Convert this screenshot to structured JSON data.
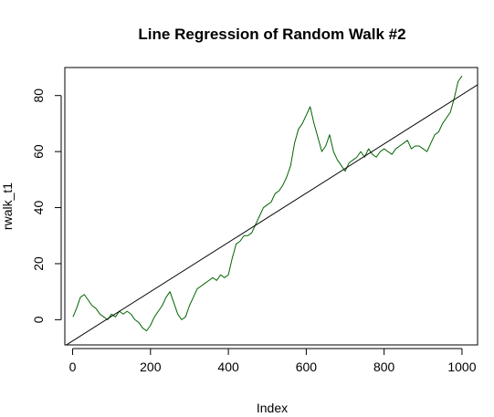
{
  "chart_data": {
    "type": "line",
    "title": "Line Regression of Random Walk #2",
    "xlabel": "Index",
    "ylabel": "rwalk_t1",
    "xlim": [
      -20,
      1040
    ],
    "ylim": [
      -9,
      90
    ],
    "x_ticks": [
      0,
      200,
      400,
      600,
      800,
      1000
    ],
    "y_ticks": [
      0,
      20,
      40,
      60,
      80
    ],
    "grid": false,
    "legend": "none",
    "series": [
      {
        "color": "#006400",
        "x": [
          1,
          10,
          20,
          30,
          40,
          50,
          60,
          70,
          80,
          90,
          100,
          110,
          120,
          130,
          140,
          150,
          160,
          170,
          180,
          190,
          200,
          210,
          220,
          230,
          240,
          250,
          260,
          270,
          280,
          290,
          300,
          310,
          320,
          330,
          340,
          350,
          360,
          370,
          380,
          390,
          400,
          410,
          420,
          430,
          440,
          450,
          460,
          470,
          480,
          490,
          500,
          510,
          520,
          530,
          540,
          550,
          560,
          570,
          580,
          590,
          600,
          610,
          620,
          630,
          640,
          650,
          660,
          670,
          680,
          690,
          700,
          710,
          720,
          730,
          740,
          750,
          760,
          770,
          780,
          790,
          800,
          810,
          820,
          830,
          840,
          850,
          860,
          870,
          880,
          890,
          900,
          910,
          920,
          930,
          940,
          950,
          960,
          970,
          980,
          990,
          1000
        ],
        "y": [
          1,
          4,
          8,
          9,
          7,
          5,
          4,
          2,
          1,
          0,
          2,
          1,
          3,
          2,
          3,
          2,
          0,
          -1,
          -3,
          -4,
          -2,
          1,
          3,
          5,
          8,
          10,
          6,
          2,
          0,
          1,
          5,
          8,
          11,
          12,
          13,
          14,
          15,
          14,
          16,
          15,
          16,
          22,
          27,
          28,
          30,
          30,
          31,
          34,
          37,
          40,
          41,
          42,
          45,
          46,
          48,
          51,
          55,
          63,
          68,
          70,
          73,
          76,
          70,
          65,
          60,
          62,
          66,
          60,
          57,
          55,
          53,
          56,
          57,
          58,
          60,
          58,
          61,
          59,
          58,
          60,
          61,
          60,
          59,
          61,
          62,
          63,
          64,
          61,
          62,
          62,
          61,
          60,
          63,
          66,
          67,
          70,
          72,
          74,
          79,
          85,
          87
        ]
      },
      {
        "color": "#000000",
        "x": [
          -20,
          1040
        ],
        "y": [
          -9.34,
          83.83
        ]
      }
    ]
  }
}
